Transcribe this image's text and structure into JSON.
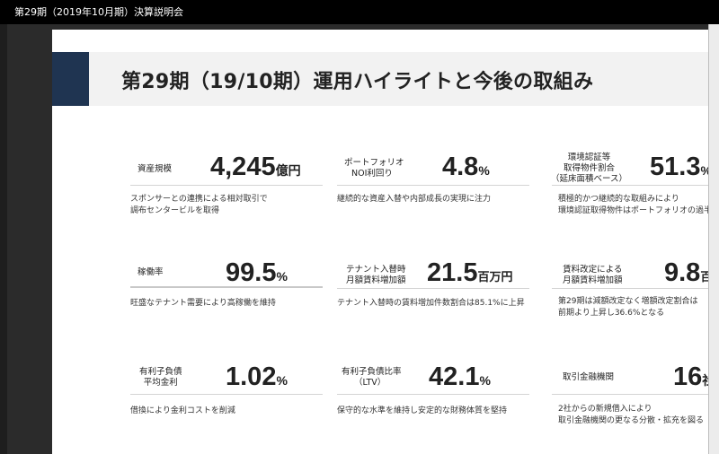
{
  "window": {
    "title": "第29期（2019年10月期）決算説明会"
  },
  "slide": {
    "title": "第29期（19/10期）運用ハイライトと今後の取組み",
    "metrics": [
      {
        "label": "資産規模",
        "value": "4,245",
        "unit": "億円",
        "desc": [
          "スポンサーとの連携による相対取引で",
          "調布センタービルを取得"
        ]
      },
      {
        "label": [
          "ポートフォリオ",
          "NOI利回り"
        ],
        "value": "4.8",
        "unit": "%",
        "desc": [
          "継続的な資産入替や内部成長の実現に注力"
        ]
      },
      {
        "label": [
          "環境認証等",
          "取得物件割合",
          "（延床面積ベース）"
        ],
        "value": "51.3",
        "unit": "%",
        "desc": [
          "積極的かつ継続的な取組みにより",
          "環境認証取得物件はポートフォリオの過半"
        ]
      },
      {
        "label": "稼働率",
        "value": "99.5",
        "unit": "%",
        "desc": [
          "旺盛なテナント需要により高稼働を維持"
        ]
      },
      {
        "label": [
          "テナント入替時",
          "月額賃料増加額"
        ],
        "value": "21.5",
        "unit": "百万円",
        "desc": [
          "テナント入替時の賃料増加件数割合は85.1%に上昇"
        ]
      },
      {
        "label": [
          "賃料改定による",
          "月額賃料増加額"
        ],
        "value": "9.8",
        "unit": "百万円",
        "desc": [
          "第29期は減額改定なく増額改定割合は",
          "前期より上昇し36.6%となる"
        ]
      },
      {
        "label": [
          "有利子負債",
          "平均金利"
        ],
        "value": "1.02",
        "unit": "%",
        "desc": [
          "借換により金利コストを削減"
        ]
      },
      {
        "label": [
          "有利子負債比率",
          "（LTV）"
        ],
        "value": "42.1",
        "unit": "%",
        "desc": [
          "保守的な水準を維持し安定的な財務体質を堅持"
        ]
      },
      {
        "label": "取引金融機関",
        "value": "16",
        "unit": "社",
        "desc": [
          "2社からの新規借入により",
          "取引金融機関の更なる分散・拡充を図る"
        ]
      }
    ]
  }
}
